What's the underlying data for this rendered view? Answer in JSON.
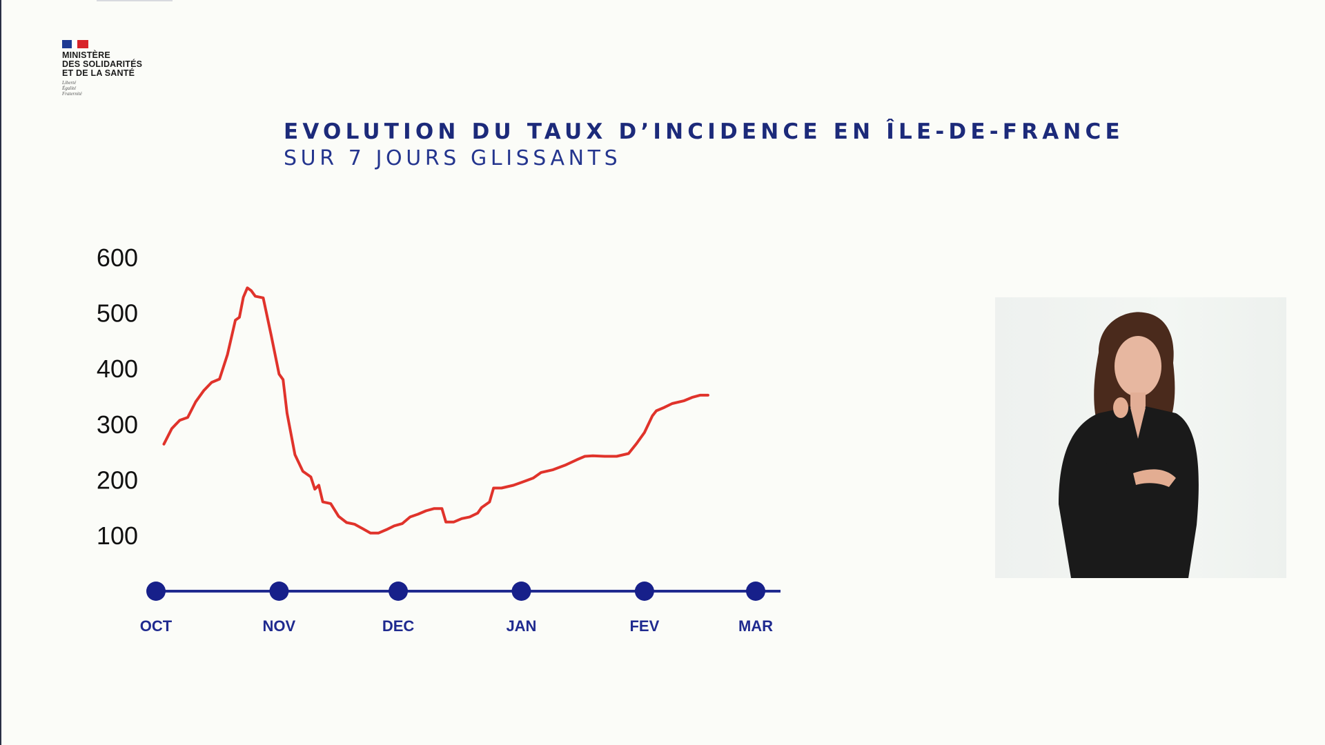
{
  "logo": {
    "flag_colors": [
      "#1e3a93",
      "#ffffff",
      "#d8232a"
    ],
    "ministry_lines": [
      "MINISTÈRE",
      "DES SOLIDARITÉS",
      "ET DE LA SANTÉ"
    ],
    "motto_lines": [
      "Liberté",
      "Égalité",
      "Fraternité"
    ]
  },
  "colors": {
    "title": "#1c2a7a",
    "line": "#e0332b",
    "axis": "#1f2a8f",
    "tick_text": "#1f2a8f",
    "y_text": "#111111"
  },
  "chart_data": {
    "type": "line",
    "title": "EVOLUTION DU TAUX D’INCIDENCE EN ÎLE-DE-FRANCE",
    "subtitle": "SUR 7 JOURS GLISSANTS",
    "xlabel": "",
    "ylabel": "",
    "y_ticks": [
      600,
      500,
      400,
      300,
      200,
      100
    ],
    "ylim": [
      0,
      600
    ],
    "x_ticks": [
      {
        "label": "OCT",
        "x": 0
      },
      {
        "label": "NOV",
        "x": 31
      },
      {
        "label": "DEC",
        "x": 61
      },
      {
        "label": "JAN",
        "x": 92
      },
      {
        "label": "FEV",
        "x": 123
      },
      {
        "label": "MAR",
        "x": 151
      }
    ],
    "xlim": [
      0,
      151
    ],
    "grid": false,
    "series": [
      {
        "values": [
          [
            2,
            264
          ],
          [
            4,
            292
          ],
          [
            6,
            307
          ],
          [
            8,
            312
          ],
          [
            10,
            340
          ],
          [
            12,
            360
          ],
          [
            14,
            375
          ],
          [
            16,
            381
          ],
          [
            18,
            425
          ],
          [
            20,
            487
          ],
          [
            21,
            492
          ],
          [
            22,
            528
          ],
          [
            23,
            545
          ],
          [
            24,
            540
          ],
          [
            25,
            530
          ],
          [
            27,
            527
          ],
          [
            29,
            460
          ],
          [
            31,
            390
          ],
          [
            32,
            380
          ],
          [
            33,
            320
          ],
          [
            35,
            245
          ],
          [
            37,
            215
          ],
          [
            39,
            205
          ],
          [
            40,
            183
          ],
          [
            41,
            190
          ],
          [
            42,
            160
          ],
          [
            44,
            157
          ],
          [
            46,
            134
          ],
          [
            48,
            123
          ],
          [
            50,
            120
          ],
          [
            52,
            112
          ],
          [
            54,
            104
          ],
          [
            56,
            104
          ],
          [
            58,
            110
          ],
          [
            60,
            117
          ],
          [
            62,
            121
          ],
          [
            64,
            133
          ],
          [
            66,
            138
          ],
          [
            68,
            144
          ],
          [
            70,
            148
          ],
          [
            72,
            148
          ],
          [
            73,
            124
          ],
          [
            75,
            124
          ],
          [
            77,
            130
          ],
          [
            79,
            133
          ],
          [
            81,
            140
          ],
          [
            82,
            150
          ],
          [
            84,
            160
          ],
          [
            85,
            185
          ],
          [
            87,
            185
          ],
          [
            90,
            190
          ],
          [
            92,
            195
          ],
          [
            95,
            203
          ],
          [
            97,
            213
          ],
          [
            100,
            218
          ],
          [
            103,
            226
          ],
          [
            106,
            236
          ],
          [
            108,
            242
          ],
          [
            110,
            243
          ],
          [
            113,
            242
          ],
          [
            116,
            242
          ],
          [
            119,
            247
          ],
          [
            121,
            265
          ],
          [
            123,
            285
          ],
          [
            125,
            315
          ],
          [
            126,
            324
          ],
          [
            128,
            330
          ],
          [
            130,
            337
          ],
          [
            133,
            342
          ],
          [
            135,
            348
          ],
          [
            137,
            352
          ],
          [
            139,
            352
          ]
        ]
      }
    ]
  }
}
